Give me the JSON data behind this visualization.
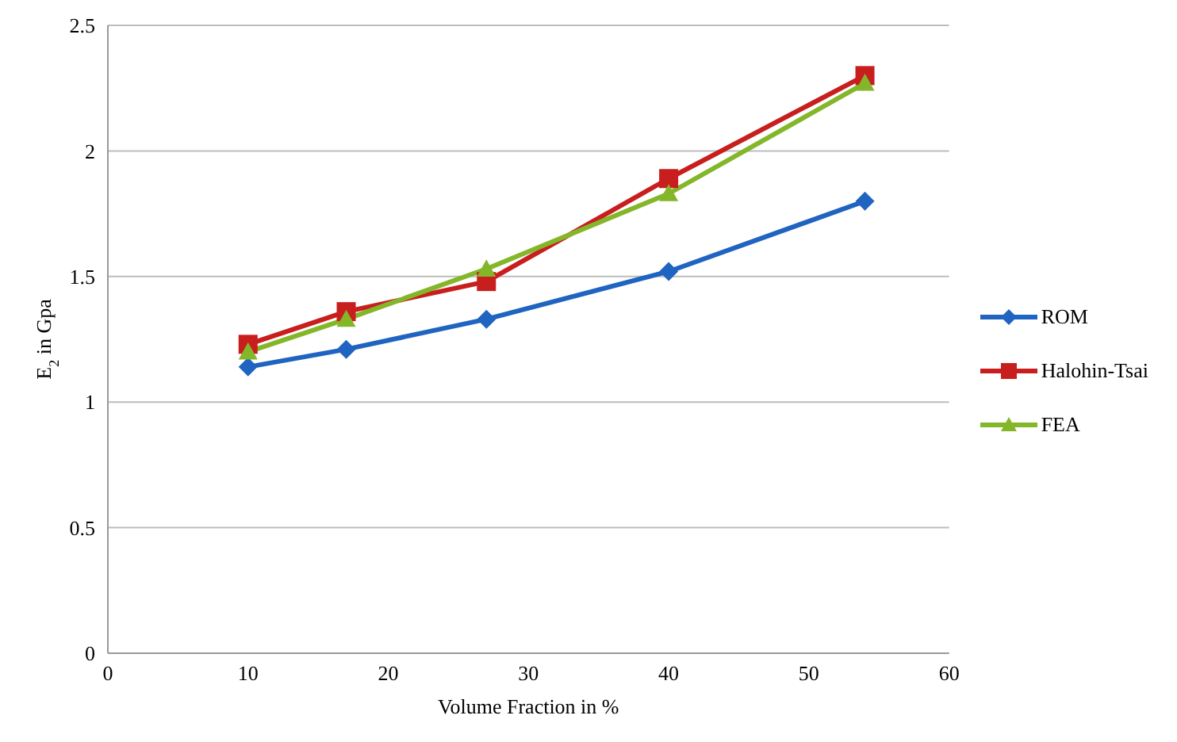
{
  "chart_data": {
    "type": "line",
    "xlabel": "Volume Fraction in %",
    "ylabel": "E$_{2}$ in Gpa",
    "x": [
      10,
      17,
      27,
      40,
      54
    ],
    "xlim": [
      0,
      60
    ],
    "xticks": [
      0,
      10,
      20,
      30,
      40,
      50,
      60
    ],
    "ylim": [
      0,
      2.5
    ],
    "yticks": [
      0,
      0.5,
      1,
      1.5,
      2,
      2.5
    ],
    "grid": "y",
    "legend": "right",
    "series": [
      {
        "name": "ROM",
        "color": "#1f64c0",
        "marker": "diamond",
        "values": [
          1.14,
          1.21,
          1.33,
          1.52,
          1.8
        ]
      },
      {
        "name": "Halohin-Tsai",
        "color": "#c81e1e",
        "marker": "square",
        "values": [
          1.23,
          1.36,
          1.48,
          1.89,
          2.3
        ]
      },
      {
        "name": "FEA",
        "color": "#84b62a",
        "marker": "triangle",
        "values": [
          1.2,
          1.33,
          1.53,
          1.83,
          2.27
        ]
      }
    ]
  }
}
